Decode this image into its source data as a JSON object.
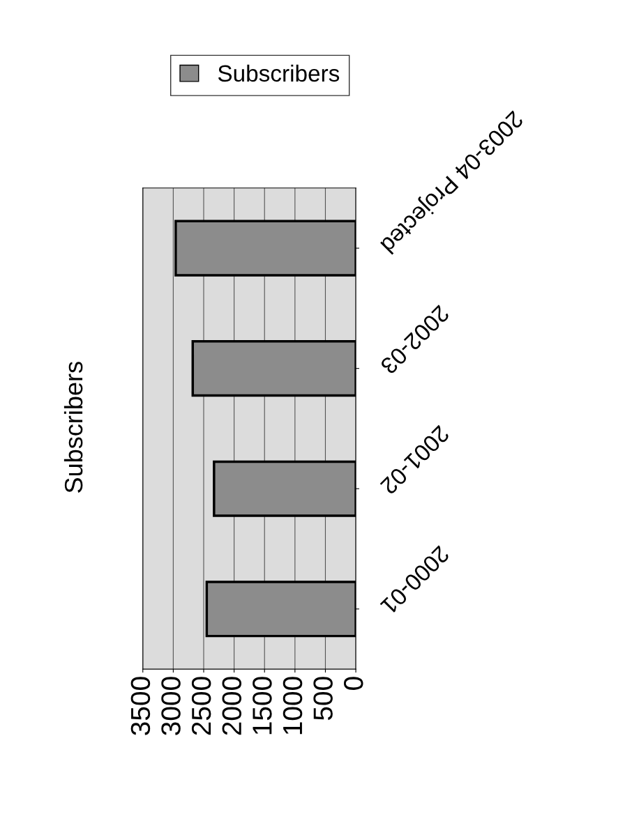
{
  "chart_data": {
    "type": "bar",
    "title": "Subscribers",
    "orientation": "horizontal",
    "categories": [
      "2003-04 Projected",
      "2002-03",
      "2001-02",
      "2000-01"
    ],
    "series": [
      {
        "name": "Subscribers",
        "color": "#8c8c8c",
        "values": [
          2960,
          2680,
          2330,
          2450
        ]
      }
    ],
    "xlim": [
      3500,
      0
    ],
    "xticks": [
      0,
      500,
      1000,
      1500,
      2000,
      2500,
      3000,
      3500
    ],
    "grid": "x",
    "legend": "top"
  }
}
